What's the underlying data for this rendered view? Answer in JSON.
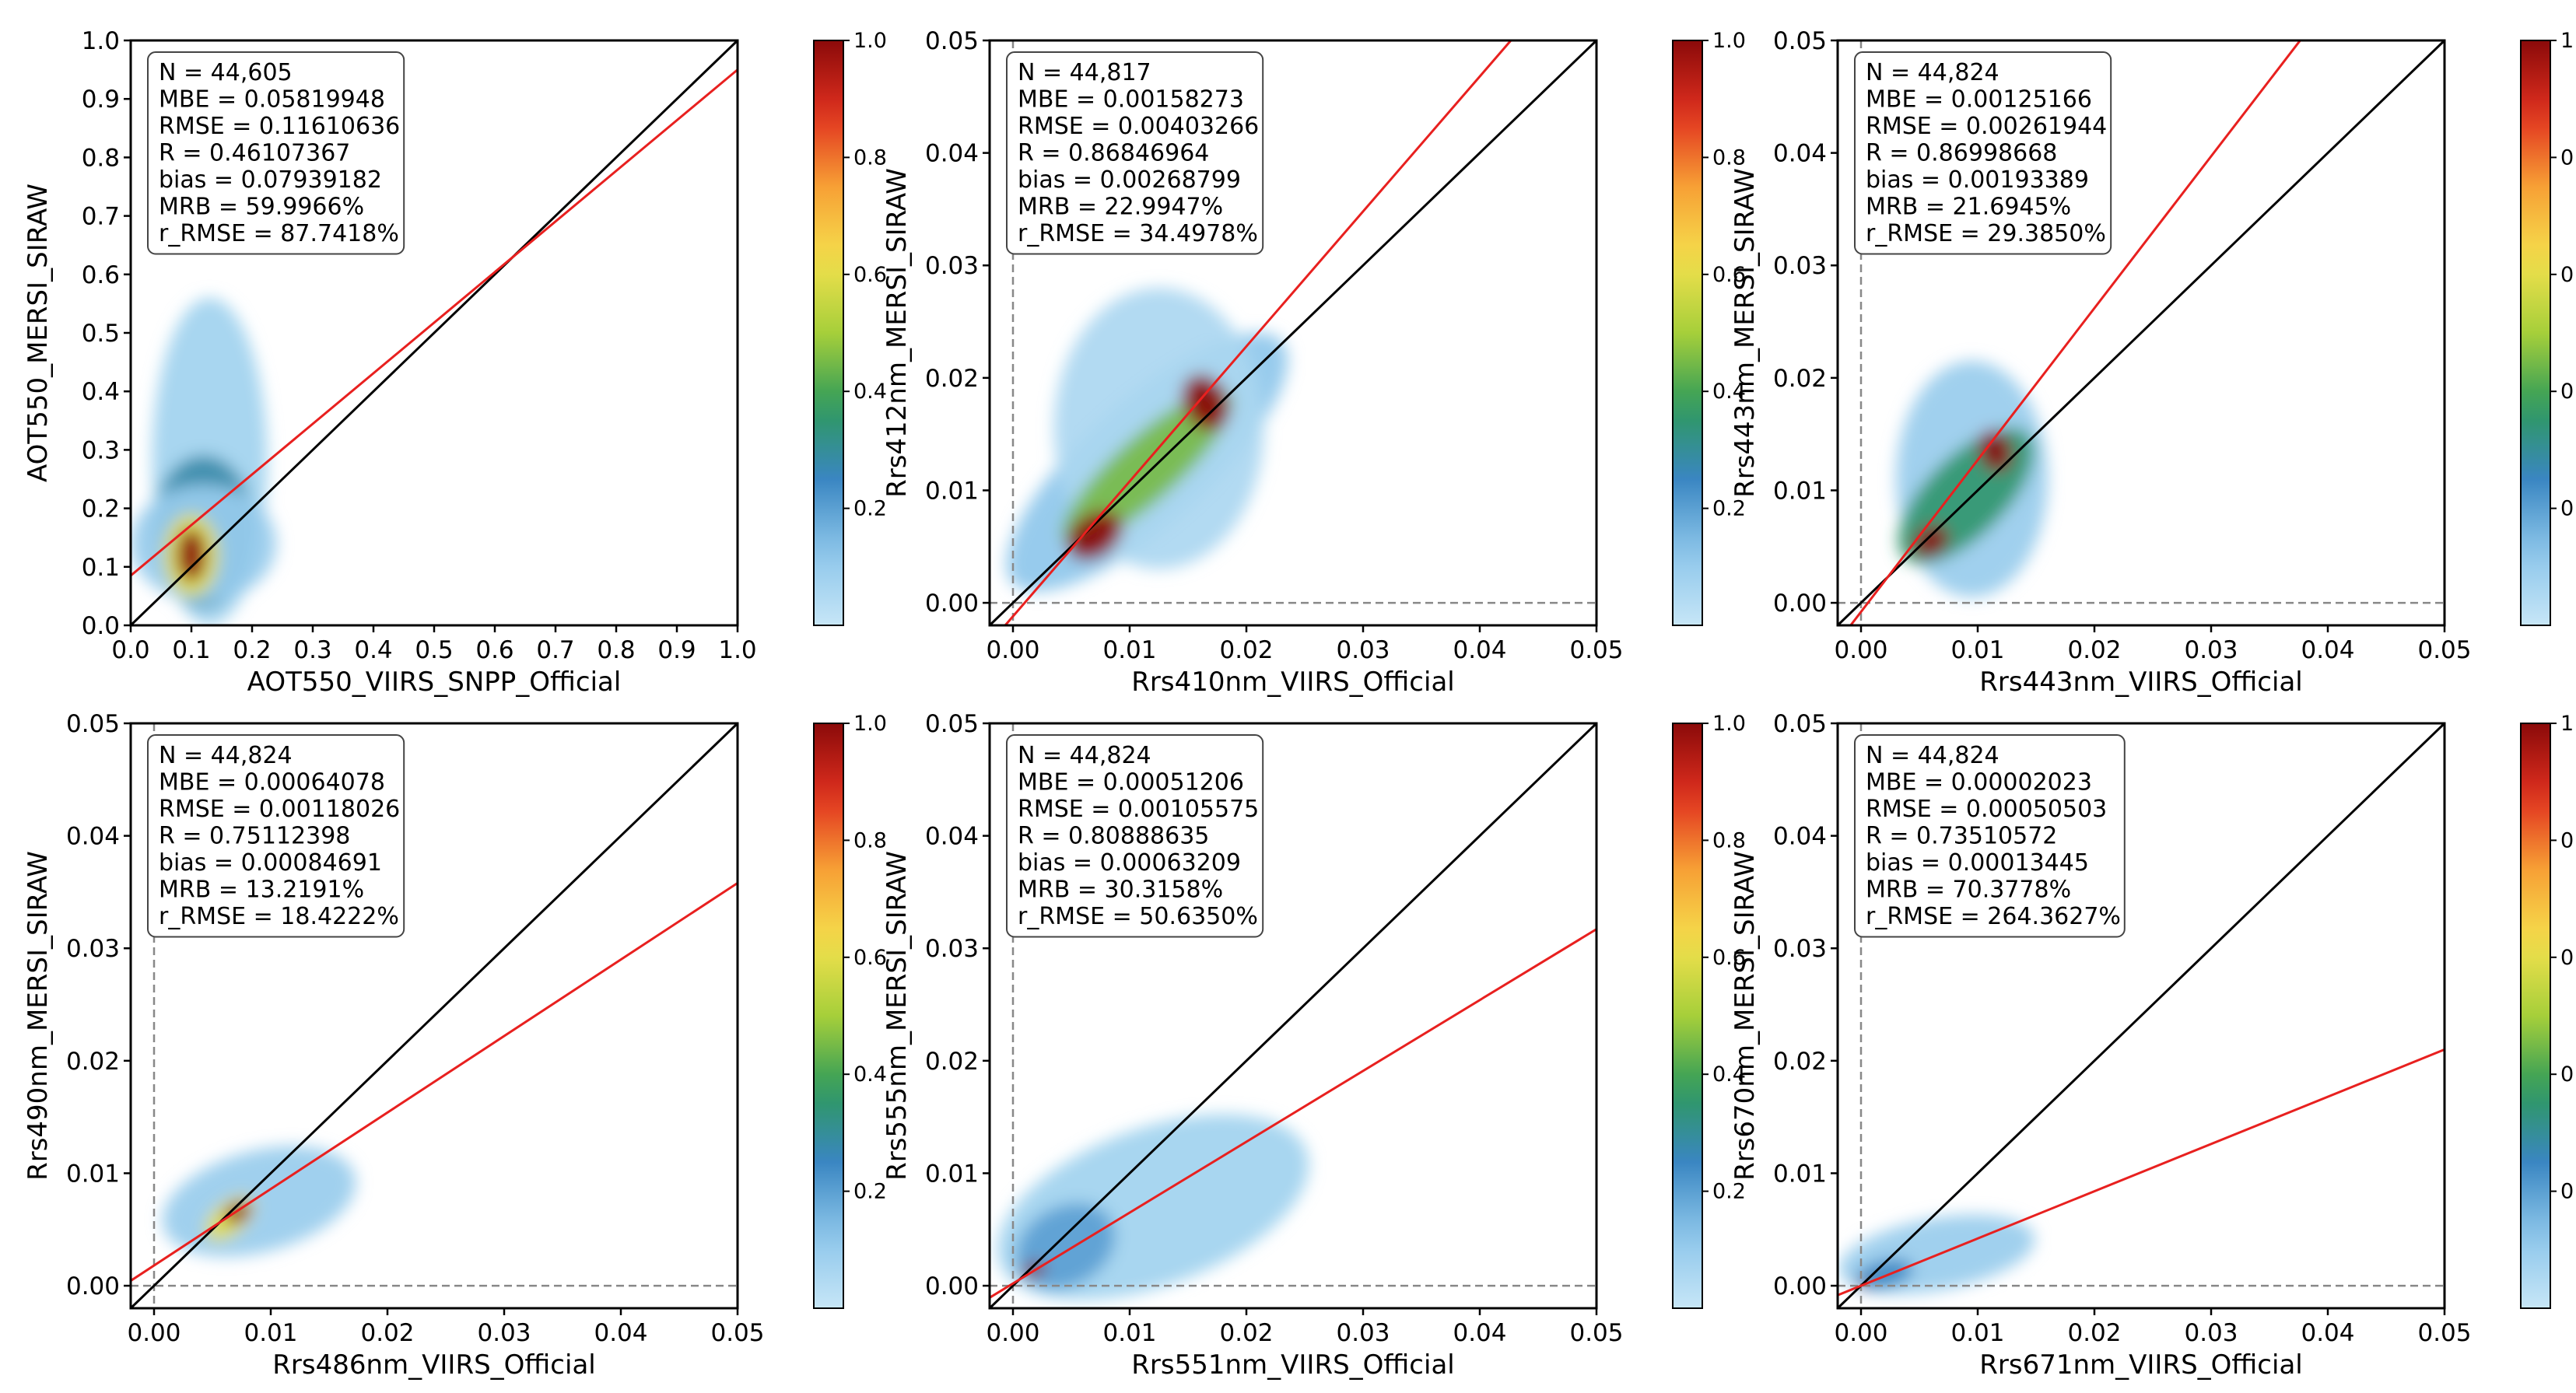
{
  "colors": {
    "one_to_one_line": "#000000",
    "fit_line": "#e8201f",
    "zero_line": "#888888",
    "colormap": [
      "#c7e6f7",
      "#8cc6ea",
      "#3a86c2",
      "#2d9a5a",
      "#a6cf3a",
      "#f4e04d",
      "#f7a035",
      "#e0301f",
      "#8b0a0a"
    ]
  },
  "colorbar": {
    "ticks": [
      "0.2",
      "0.4",
      "0.6",
      "0.8",
      "1.0"
    ],
    "tick_values": [
      0.2,
      0.4,
      0.6,
      0.8,
      1.0
    ]
  },
  "chart_data": [
    {
      "type": "scatter",
      "title": "",
      "xlabel": "AOT550_VIIRS_SNPP_Official",
      "ylabel": "AOT550_MERSI_SIRAW",
      "xlim": [
        0.0,
        1.0
      ],
      "ylim": [
        0.0,
        1.0
      ],
      "x_ticks": [
        "0.0",
        "0.1",
        "0.2",
        "0.3",
        "0.4",
        "0.5",
        "0.6",
        "0.7",
        "0.8",
        "0.9",
        "1.0"
      ],
      "x_tick_values": [
        0,
        0.1,
        0.2,
        0.3,
        0.4,
        0.5,
        0.6,
        0.7,
        0.8,
        0.9,
        1.0
      ],
      "y_ticks": [
        "0.0",
        "0.1",
        "0.2",
        "0.3",
        "0.4",
        "0.5",
        "0.6",
        "0.7",
        "0.8",
        "0.9",
        "1.0"
      ],
      "y_tick_values": [
        0,
        0.1,
        0.2,
        0.3,
        0.4,
        0.5,
        0.6,
        0.7,
        0.8,
        0.9,
        1.0
      ],
      "zero_lines": false,
      "fit_line": {
        "intercept": 0.085,
        "slope": 0.865
      },
      "cloud": [
        {
          "x": 0.13,
          "y": 0.28,
          "rx": 0.095,
          "ry": 0.28,
          "angle": 0,
          "density": 0.08
        },
        {
          "x": 0.12,
          "y": 0.16,
          "rx": 0.085,
          "ry": 0.13,
          "angle": 0,
          "density": 0.28
        },
        {
          "x": 0.12,
          "y": 0.14,
          "rx": 0.12,
          "ry": 0.1,
          "angle": 0,
          "density": 0.1
        },
        {
          "x": 0.1,
          "y": 0.12,
          "rx": 0.045,
          "ry": 0.07,
          "angle": 0,
          "density": 0.6
        },
        {
          "x": 0.1,
          "y": 0.12,
          "rx": 0.024,
          "ry": 0.045,
          "angle": 0,
          "density": 1.0
        }
      ],
      "stats": [
        "N = 44,605",
        "MBE = 0.05819948",
        "RMSE = 0.11610636",
        "R = 0.46107367",
        "bias = 0.07939182",
        "MRB = 59.9966%",
        "r_RMSE = 87.7418%"
      ]
    },
    {
      "type": "scatter",
      "title": "",
      "xlabel": "Rrs410nm_VIIRS_Official",
      "ylabel": "Rrs412nm_MERSI_SIRAW",
      "xlim": [
        -0.002,
        0.05
      ],
      "ylim": [
        -0.002,
        0.05
      ],
      "x_ticks": [
        "0.00",
        "0.01",
        "0.02",
        "0.03",
        "0.04",
        "0.05"
      ],
      "x_tick_values": [
        0,
        0.01,
        0.02,
        0.03,
        0.04,
        0.05
      ],
      "y_ticks": [
        "0.00",
        "0.01",
        "0.02",
        "0.03",
        "0.04",
        "0.05"
      ],
      "y_tick_values": [
        0,
        0.01,
        0.02,
        0.03,
        0.04,
        0.05
      ],
      "zero_lines": true,
      "fit_line": {
        "intercept": -0.0012,
        "slope": 1.2
      },
      "cloud": [
        {
          "x": 0.0115,
          "y": 0.0125,
          "rx": 0.0155,
          "ry": 0.0055,
          "angle": 42,
          "density": 0.12
        },
        {
          "x": 0.0125,
          "y": 0.0155,
          "rx": 0.009,
          "ry": 0.0125,
          "angle": 0,
          "density": 0.06
        },
        {
          "x": 0.0115,
          "y": 0.012,
          "rx": 0.0095,
          "ry": 0.0028,
          "angle": 42,
          "density": 0.45
        },
        {
          "x": 0.007,
          "y": 0.006,
          "rx": 0.0026,
          "ry": 0.0019,
          "angle": 35,
          "density": 1.0
        },
        {
          "x": 0.0165,
          "y": 0.0178,
          "rx": 0.0019,
          "ry": 0.0026,
          "angle": 25,
          "density": 1.0
        }
      ],
      "stats": [
        "N = 44,817",
        "MBE = 0.00158273",
        "RMSE = 0.00403266",
        "R = 0.86846964",
        "bias = 0.00268799",
        "MRB = 22.9947%",
        "r_RMSE = 34.4978%"
      ]
    },
    {
      "type": "scatter",
      "title": "",
      "xlabel": "Rrs443nm_VIIRS_Official",
      "ylabel": "Rrs443nm_MERSI_SIRAW",
      "xlim": [
        -0.002,
        0.05
      ],
      "ylim": [
        -0.002,
        0.05
      ],
      "x_ticks": [
        "0.00",
        "0.01",
        "0.02",
        "0.03",
        "0.04",
        "0.05"
      ],
      "x_tick_values": [
        0,
        0.01,
        0.02,
        0.03,
        0.04,
        0.05
      ],
      "y_ticks": [
        "0.00",
        "0.01",
        "0.02",
        "0.03",
        "0.04",
        "0.05"
      ],
      "y_tick_values": [
        0,
        0.01,
        0.02,
        0.03,
        0.04,
        0.05
      ],
      "zero_lines": true,
      "fit_line": {
        "intercept": -0.0008,
        "slope": 1.35
      },
      "cloud": [
        {
          "x": 0.0095,
          "y": 0.011,
          "rx": 0.0065,
          "ry": 0.0105,
          "angle": 0,
          "density": 0.1
        },
        {
          "x": 0.009,
          "y": 0.0095,
          "rx": 0.0075,
          "ry": 0.0035,
          "angle": 45,
          "density": 0.35
        },
        {
          "x": 0.006,
          "y": 0.0055,
          "rx": 0.0016,
          "ry": 0.0013,
          "angle": 35,
          "density": 1.0
        },
        {
          "x": 0.0115,
          "y": 0.0135,
          "rx": 0.0014,
          "ry": 0.0019,
          "angle": 20,
          "density": 1.0
        }
      ],
      "stats": [
        "N = 44,824",
        "MBE = 0.00125166",
        "RMSE = 0.00261944",
        "R = 0.86998668",
        "bias = 0.00193389",
        "MRB = 21.6945%",
        "r_RMSE = 29.3850%"
      ]
    },
    {
      "type": "scatter",
      "title": "",
      "xlabel": "Rrs486nm_VIIRS_Official",
      "ylabel": "Rrs490nm_MERSI_SIRAW",
      "xlim": [
        -0.002,
        0.05
      ],
      "ylim": [
        -0.002,
        0.05
      ],
      "x_ticks": [
        "0.00",
        "0.01",
        "0.02",
        "0.03",
        "0.04",
        "0.05"
      ],
      "x_tick_values": [
        0,
        0.01,
        0.02,
        0.03,
        0.04,
        0.05
      ],
      "y_ticks": [
        "0.00",
        "0.01",
        "0.02",
        "0.03",
        "0.04",
        "0.05"
      ],
      "y_tick_values": [
        0,
        0.01,
        0.02,
        0.03,
        0.04,
        0.05
      ],
      "zero_lines": true,
      "fit_line": {
        "intercept": 0.0018,
        "slope": 0.68
      },
      "cloud": [
        {
          "x": 0.009,
          "y": 0.0075,
          "rx": 0.0085,
          "ry": 0.0045,
          "angle": 15,
          "density": 0.1
        },
        {
          "x": 0.0065,
          "y": 0.006,
          "rx": 0.0025,
          "ry": 0.0014,
          "angle": 40,
          "density": 0.6
        },
        {
          "x": 0.0072,
          "y": 0.0065,
          "rx": 0.0012,
          "ry": 0.0008,
          "angle": 30,
          "density": 1.0
        }
      ],
      "stats": [
        "N = 44,824",
        "MBE = 0.00064078",
        "RMSE = 0.00118026",
        "R = 0.75112398",
        "bias = 0.00084691",
        "MRB = 13.2191%",
        "r_RMSE = 18.4222%"
      ]
    },
    {
      "type": "scatter",
      "title": "",
      "xlabel": "Rrs551nm_VIIRS_Official",
      "ylabel": "Rrs555nm_MERSI_SIRAW",
      "xlim": [
        -0.002,
        0.05
      ],
      "ylim": [
        -0.002,
        0.05
      ],
      "x_ticks": [
        "0.00",
        "0.01",
        "0.02",
        "0.03",
        "0.04",
        "0.05"
      ],
      "x_tick_values": [
        0,
        0.01,
        0.02,
        0.03,
        0.04,
        0.05
      ],
      "y_ticks": [
        "0.00",
        "0.01",
        "0.02",
        "0.03",
        "0.04",
        "0.05"
      ],
      "y_tick_values": [
        0,
        0.01,
        0.02,
        0.03,
        0.04,
        0.05
      ],
      "zero_lines": true,
      "fit_line": {
        "intercept": 0.0002,
        "slope": 0.63
      },
      "cloud": [
        {
          "x": 0.012,
          "y": 0.007,
          "rx": 0.014,
          "ry": 0.007,
          "angle": 20,
          "density": 0.08
        },
        {
          "x": 0.0045,
          "y": 0.0035,
          "rx": 0.0045,
          "ry": 0.0035,
          "angle": 30,
          "density": 0.2
        },
        {
          "x": 0.0018,
          "y": 0.0014,
          "rx": 0.0011,
          "ry": 0.0006,
          "angle": 20,
          "density": 1.0
        }
      ],
      "stats": [
        "N = 44,824",
        "MBE = 0.00051206",
        "RMSE = 0.00105575",
        "R = 0.80888635",
        "bias = 0.00063209",
        "MRB = 30.3158%",
        "r_RMSE = 50.6350%"
      ]
    },
    {
      "type": "scatter",
      "title": "",
      "xlabel": "Rrs671nm_VIIRS_Official",
      "ylabel": "Rrs670nm_MERSI_SIRAW",
      "xlim": [
        -0.002,
        0.05
      ],
      "ylim": [
        -0.002,
        0.05
      ],
      "x_ticks": [
        "0.00",
        "0.01",
        "0.02",
        "0.03",
        "0.04",
        "0.05"
      ],
      "x_tick_values": [
        0,
        0.01,
        0.02,
        0.03,
        0.04,
        0.05
      ],
      "y_ticks": [
        "0.00",
        "0.01",
        "0.02",
        "0.03",
        "0.04",
        "0.05"
      ],
      "y_tick_values": [
        0,
        0.01,
        0.02,
        0.03,
        0.04,
        0.05
      ],
      "zero_lines": true,
      "fit_line": {
        "intercept": 0.0,
        "slope": 0.42
      },
      "cloud": [
        {
          "x": 0.0065,
          "y": 0.0028,
          "rx": 0.0085,
          "ry": 0.0032,
          "angle": 10,
          "density": 0.1
        },
        {
          "x": 0.002,
          "y": 0.001,
          "rx": 0.0025,
          "ry": 0.0012,
          "angle": 15,
          "density": 0.25
        },
        {
          "x": 0.0002,
          "y": 0.0002,
          "rx": 0.0005,
          "ry": 0.0003,
          "angle": 0,
          "density": 1.0
        }
      ],
      "stats": [
        "N = 44,824",
        "MBE = 0.00002023",
        "RMSE = 0.00050503",
        "R = 0.73510572",
        "bias = 0.00013445",
        "MRB = 70.3778%",
        "r_RMSE = 264.3627%"
      ]
    }
  ]
}
